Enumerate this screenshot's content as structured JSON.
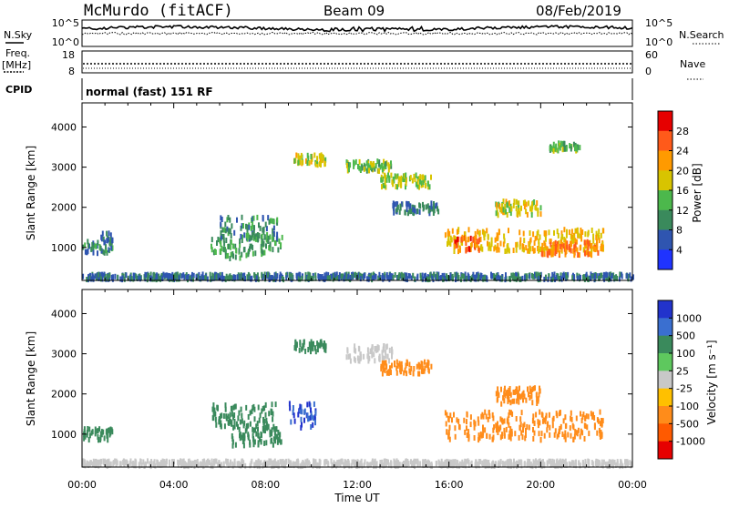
{
  "header": {
    "station": "McMurdo (fitACF)",
    "beam": "Beam 09",
    "date": "08/Feb/2019"
  },
  "noise_panel": {
    "left_label": "N.Sky",
    "left_ticks": [
      "10^5",
      "10^0"
    ],
    "right_label": "N.Search",
    "right_ticks": [
      "10^5",
      "10^0"
    ]
  },
  "freq_panel": {
    "left_label_1": "Freq.",
    "left_label_2": "[MHz]",
    "left_ticks": [
      "18",
      "8"
    ],
    "right_label": "Nave",
    "right_ticks": [
      "60",
      "0"
    ]
  },
  "cpid": {
    "label": "CPID",
    "value": "normal (fast) 151 RF"
  },
  "x_axis": {
    "ticks": [
      "00:00",
      "04:00",
      "08:00",
      "12:00",
      "16:00",
      "20:00",
      "00:00"
    ],
    "title": "Time UT"
  },
  "power_panel": {
    "ylabel": "Slant Range [km]",
    "yticks": [
      "1000",
      "2000",
      "3000",
      "4000"
    ],
    "colorbar_label": "Power [dB]",
    "colorbar_ticks": [
      "4",
      "8",
      "12",
      "16",
      "20",
      "24",
      "28"
    ],
    "colorbar_colors": [
      "#1f33ff",
      "#2f55b0",
      "#3a8a5c",
      "#4cb84c",
      "#d8c400",
      "#ff9a00",
      "#ff5a1a",
      "#e60000"
    ]
  },
  "velocity_panel": {
    "ylabel": "Slant Range [km]",
    "yticks": [
      "1000",
      "2000",
      "3000",
      "4000"
    ],
    "colorbar_label": "Velocity [m s⁻¹]",
    "colorbar_ticks": [
      "1000",
      "500",
      "100",
      "25",
      "-25",
      "-100",
      "-500",
      "-1000"
    ],
    "colorbar_colors": [
      "#2233cc",
      "#3a6fd0",
      "#3a8a5c",
      "#5ec85e",
      "#c8c8c8",
      "#ffc000",
      "#ff8c1a",
      "#ff5a00",
      "#e60000"
    ]
  },
  "chart_data": [
    {
      "type": "heatmap",
      "title": "Power [dB]",
      "xlabel": "Time UT",
      "ylabel": "Slant Range [km]",
      "xlim": [
        0,
        24
      ],
      "ylim": [
        180,
        4600
      ],
      "x_units": "hours UT",
      "color_range": [
        0,
        30
      ],
      "blobs": [
        {
          "t": [
            0.0,
            1.3
          ],
          "r": [
            850,
            1150
          ],
          "level": 10
        },
        {
          "t": [
            0.8,
            1.3
          ],
          "r": [
            1000,
            1400
          ],
          "level": 8
        },
        {
          "t": [
            5.6,
            7.0
          ],
          "r": [
            700,
            1200
          ],
          "level": 12
        },
        {
          "t": [
            6.0,
            8.5
          ],
          "r": [
            1200,
            1750
          ],
          "level": 10
        },
        {
          "t": [
            7.0,
            8.7
          ],
          "r": [
            800,
            1300
          ],
          "level": 12
        },
        {
          "t": [
            9.2,
            10.6
          ],
          "r": [
            3050,
            3300
          ],
          "level": 18
        },
        {
          "t": [
            11.5,
            13.5
          ],
          "r": [
            2900,
            3150
          ],
          "level": 14
        },
        {
          "t": [
            13.0,
            15.2
          ],
          "r": [
            2500,
            2800
          ],
          "level": 16
        },
        {
          "t": [
            13.5,
            15.5
          ],
          "r": [
            1850,
            2100
          ],
          "level": 8
        },
        {
          "t": [
            15.8,
            22.7
          ],
          "r": [
            900,
            1450
          ],
          "level": 20
        },
        {
          "t": [
            16.2,
            17.3
          ],
          "r": [
            900,
            1250
          ],
          "level": 26
        },
        {
          "t": [
            18.0,
            20.0
          ],
          "r": [
            1800,
            2150
          ],
          "level": 18
        },
        {
          "t": [
            20.0,
            22.5
          ],
          "r": [
            800,
            1150
          ],
          "level": 24
        },
        {
          "t": [
            20.3,
            21.8
          ],
          "r": [
            3400,
            3600
          ],
          "level": 14
        },
        {
          "t": [
            0.0,
            24.0
          ],
          "r": [
            200,
            330
          ],
          "level": 8
        }
      ]
    },
    {
      "type": "heatmap",
      "title": "Velocity [m s⁻¹]",
      "xlabel": "Time UT",
      "ylabel": "Slant Range [km]",
      "xlim": [
        0,
        24
      ],
      "ylim": [
        180,
        4600
      ],
      "x_units": "hours UT",
      "blobs": [
        {
          "t": [
            0.0,
            1.3
          ],
          "r": [
            850,
            1150
          ],
          "vel": 150
        },
        {
          "t": [
            5.6,
            8.5
          ],
          "r": [
            1100,
            1750
          ],
          "vel": 200
        },
        {
          "t": [
            6.5,
            8.7
          ],
          "r": [
            700,
            1200
          ],
          "vel": 250
        },
        {
          "t": [
            9.0,
            10.2
          ],
          "r": [
            1150,
            1800
          ],
          "vel": 700
        },
        {
          "t": [
            9.2,
            10.6
          ],
          "r": [
            3050,
            3300
          ],
          "vel": 200
        },
        {
          "t": [
            11.5,
            13.5
          ],
          "r": [
            2800,
            3200
          ],
          "vel": 0
        },
        {
          "t": [
            13.0,
            15.2
          ],
          "r": [
            2500,
            2800
          ],
          "vel": -150
        },
        {
          "t": [
            15.8,
            22.7
          ],
          "r": [
            850,
            1550
          ],
          "vel": -200
        },
        {
          "t": [
            18.0,
            20.0
          ],
          "r": [
            1750,
            2150
          ],
          "vel": -200
        },
        {
          "t": [
            0.0,
            24.0
          ],
          "r": [
            200,
            330
          ],
          "vel": 0
        }
      ]
    }
  ]
}
